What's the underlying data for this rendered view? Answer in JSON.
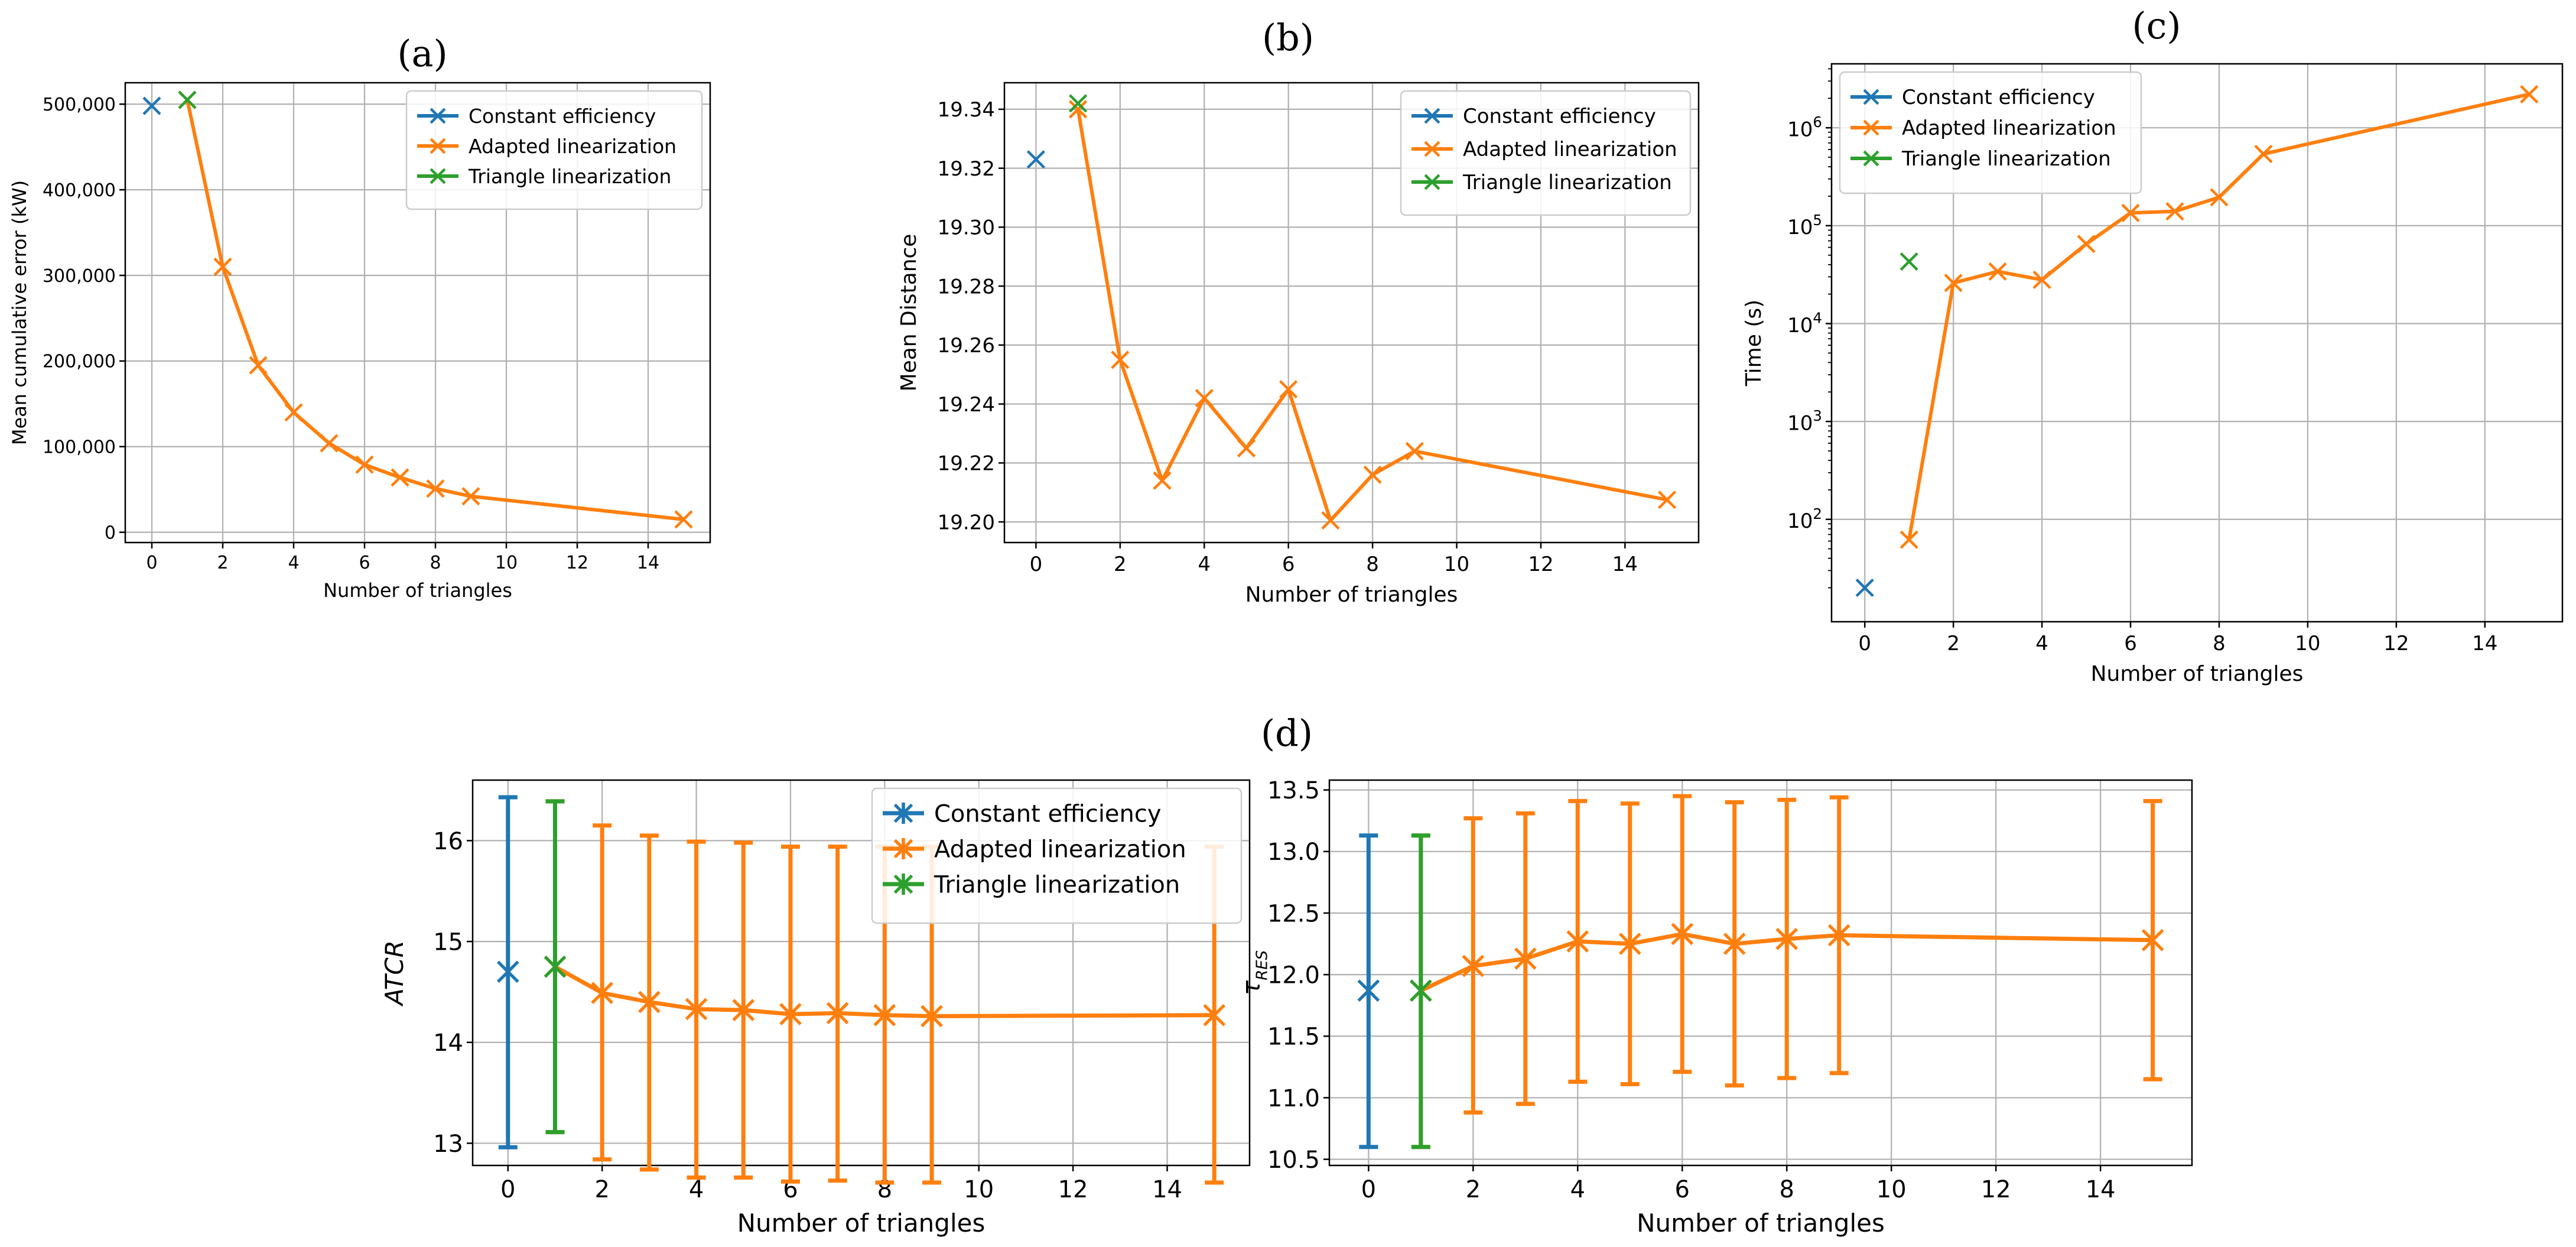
{
  "colors": {
    "constant": "#1f77b4",
    "adapted": "#ff7f0e",
    "triangle": "#2ca02c",
    "grid": "#b0b0b0",
    "axis": "#000000"
  },
  "chart_data": [
    {
      "id": "a",
      "type": "line",
      "title": "(a)",
      "xlabel": "Number of triangles",
      "ylabel": "Mean cumulative error (kW)",
      "xlim": [
        -0.75,
        15.75
      ],
      "ylim": [
        -12000,
        525000
      ],
      "yscale": "linear",
      "xticks": [
        0,
        2,
        4,
        6,
        8,
        10,
        12,
        14
      ],
      "xtick_labels": [
        "0",
        "2",
        "4",
        "6",
        "8",
        "10",
        "12",
        "14"
      ],
      "yticks": [
        0,
        100000,
        200000,
        300000,
        400000,
        500000
      ],
      "ytick_labels": [
        "0",
        "100,000",
        "200,000",
        "300,000",
        "400,000",
        "500,000"
      ],
      "legend_labels": [
        "Constant efficiency",
        "Adapted linearization",
        "Triangle linearization"
      ],
      "legend_position": "top-right",
      "series": [
        {
          "name": "Constant efficiency",
          "color_key": "constant",
          "x": [
            0
          ],
          "y": [
            498000
          ]
        },
        {
          "name": "Adapted linearization",
          "color_key": "adapted",
          "x": [
            1,
            2,
            3,
            4,
            5,
            6,
            7,
            8,
            9,
            15
          ],
          "y": [
            505000,
            310000,
            195000,
            140000,
            104000,
            79000,
            64000,
            51000,
            42000,
            15000
          ]
        },
        {
          "name": "Triangle linearization",
          "color_key": "triangle",
          "x": [
            1
          ],
          "y": [
            505000
          ]
        }
      ]
    },
    {
      "id": "b",
      "type": "line",
      "title": "(b)",
      "xlabel": "Number of triangles",
      "ylabel": "Mean Distance",
      "xlim": [
        -0.75,
        15.75
      ],
      "ylim": [
        19.193,
        19.349
      ],
      "yscale": "linear",
      "xticks": [
        0,
        2,
        4,
        6,
        8,
        10,
        12,
        14
      ],
      "xtick_labels": [
        "0",
        "2",
        "4",
        "6",
        "8",
        "10",
        "12",
        "14"
      ],
      "yticks": [
        19.2,
        19.22,
        19.24,
        19.26,
        19.28,
        19.3,
        19.32,
        19.34
      ],
      "ytick_labels": [
        "19.20",
        "19.22",
        "19.24",
        "19.26",
        "19.28",
        "19.30",
        "19.32",
        "19.34"
      ],
      "legend_labels": [
        "Constant efficiency",
        "Adapted linearization",
        "Triangle linearization"
      ],
      "legend_position": "top-right",
      "series": [
        {
          "name": "Constant efficiency",
          "color_key": "constant",
          "x": [
            0
          ],
          "y": [
            19.323
          ]
        },
        {
          "name": "Adapted linearization",
          "color_key": "adapted",
          "x": [
            1,
            2,
            3,
            4,
            5,
            6,
            7,
            8,
            9,
            15
          ],
          "y": [
            19.34,
            19.255,
            19.214,
            19.242,
            19.225,
            19.245,
            19.2005,
            19.216,
            19.224,
            19.2075
          ]
        },
        {
          "name": "Triangle linearization",
          "color_key": "triangle",
          "x": [
            1
          ],
          "y": [
            19.342
          ]
        }
      ]
    },
    {
      "id": "c",
      "type": "line",
      "title": "(c)",
      "xlabel": "Number of triangles",
      "ylabel": "Time (s)",
      "xlim": [
        -0.75,
        15.75
      ],
      "ylim": [
        9,
        4500000
      ],
      "yscale": "log",
      "xticks": [
        0,
        2,
        4,
        6,
        8,
        10,
        12,
        14
      ],
      "xtick_labels": [
        "0",
        "2",
        "4",
        "6",
        "8",
        "10",
        "12",
        "14"
      ],
      "yticks": [
        100,
        1000,
        10000,
        100000,
        1000000
      ],
      "ytick_mantissa": [
        "10",
        "10",
        "10",
        "10",
        "10"
      ],
      "ytick_exponents": [
        "2",
        "3",
        "4",
        "5",
        "6"
      ],
      "legend_labels": [
        "Constant efficiency",
        "Adapted linearization",
        "Triangle linearization"
      ],
      "legend_position": "top-left",
      "series": [
        {
          "name": "Constant efficiency",
          "color_key": "constant",
          "x": [
            0
          ],
          "y": [
            20
          ]
        },
        {
          "name": "Adapted linearization",
          "color_key": "adapted",
          "x": [
            1,
            2,
            3,
            4,
            5,
            6,
            7,
            8,
            9,
            15
          ],
          "y": [
            62,
            26000,
            34000,
            28000,
            65000,
            135000,
            140000,
            195000,
            540000,
            2200000
          ]
        },
        {
          "name": "Triangle linearization",
          "color_key": "triangle",
          "x": [
            1
          ],
          "y": [
            43000
          ]
        }
      ]
    },
    {
      "id": "d1",
      "type": "line",
      "title": "(d)",
      "xlabel": "Number of triangles",
      "ylabel": "ATCR",
      "xlim": [
        -0.75,
        15.75
      ],
      "ylim": [
        12.78,
        16.6
      ],
      "yscale": "linear",
      "xticks": [
        0,
        2,
        4,
        6,
        8,
        10,
        12,
        14
      ],
      "xtick_labels": [
        "0",
        "2",
        "4",
        "6",
        "8",
        "10",
        "12",
        "14"
      ],
      "yticks": [
        13,
        14,
        15,
        16
      ],
      "ytick_labels": [
        "13",
        "14",
        "15",
        "16"
      ],
      "legend_labels": [
        "Constant efficiency",
        "Adapted linearization",
        "Triangle linearization"
      ],
      "legend_position": "top-right",
      "series": [
        {
          "name": "Constant efficiency",
          "color_key": "constant",
          "x": [
            0
          ],
          "y": [
            14.7
          ],
          "err_low": [
            12.96
          ],
          "err_high": [
            16.43
          ]
        },
        {
          "name": "Adapted linearization",
          "color_key": "adapted",
          "x": [
            1,
            2,
            3,
            4,
            5,
            6,
            7,
            8,
            9,
            15
          ],
          "y": [
            14.75,
            14.49,
            14.4,
            14.33,
            14.32,
            14.28,
            14.29,
            14.27,
            14.26,
            14.27
          ],
          "err_low": [
            13.11,
            12.84,
            12.74,
            12.66,
            12.66,
            12.62,
            12.63,
            12.61,
            12.61,
            12.61
          ],
          "err_high": [
            16.39,
            16.15,
            16.05,
            15.99,
            15.98,
            15.94,
            15.94,
            15.94,
            15.94,
            15.94
          ]
        },
        {
          "name": "Triangle linearization",
          "color_key": "triangle",
          "x": [
            1
          ],
          "y": [
            14.75
          ],
          "err_low": [
            13.11
          ],
          "err_high": [
            16.39
          ]
        }
      ]
    },
    {
      "id": "d2",
      "type": "line",
      "title": "",
      "xlabel": "Number of triangles",
      "ylabel_main": "τ",
      "ylabel_sub": "RES",
      "xlim": [
        -0.75,
        15.75
      ],
      "ylim": [
        10.45,
        13.58
      ],
      "yscale": "linear",
      "xticks": [
        0,
        2,
        4,
        6,
        8,
        10,
        12,
        14
      ],
      "xtick_labels": [
        "0",
        "2",
        "4",
        "6",
        "8",
        "10",
        "12",
        "14"
      ],
      "yticks": [
        10.5,
        11.0,
        11.5,
        12.0,
        12.5,
        13.0,
        13.5
      ],
      "ytick_labels": [
        "10.5",
        "11.0",
        "11.5",
        "12.0",
        "12.5",
        "13.0",
        "13.5"
      ],
      "legend_position": "none",
      "series": [
        {
          "name": "Constant efficiency",
          "color_key": "constant",
          "x": [
            0
          ],
          "y": [
            11.87
          ],
          "err_low": [
            10.6
          ],
          "err_high": [
            13.13
          ]
        },
        {
          "name": "Adapted linearization",
          "color_key": "adapted",
          "x": [
            1,
            2,
            3,
            4,
            5,
            6,
            7,
            8,
            9,
            15
          ],
          "y": [
            11.87,
            12.07,
            12.13,
            12.27,
            12.25,
            12.33,
            12.25,
            12.29,
            12.32,
            12.28
          ],
          "err_low": [
            10.6,
            10.88,
            10.95,
            11.13,
            11.11,
            11.21,
            11.1,
            11.16,
            11.2,
            11.15
          ],
          "err_high": [
            13.13,
            13.27,
            13.31,
            13.41,
            13.39,
            13.45,
            13.4,
            13.42,
            13.44,
            13.41
          ]
        },
        {
          "name": "Triangle linearization",
          "color_key": "triangle",
          "x": [
            1
          ],
          "y": [
            11.87
          ],
          "err_low": [
            10.6
          ],
          "err_high": [
            13.13
          ]
        }
      ]
    }
  ]
}
